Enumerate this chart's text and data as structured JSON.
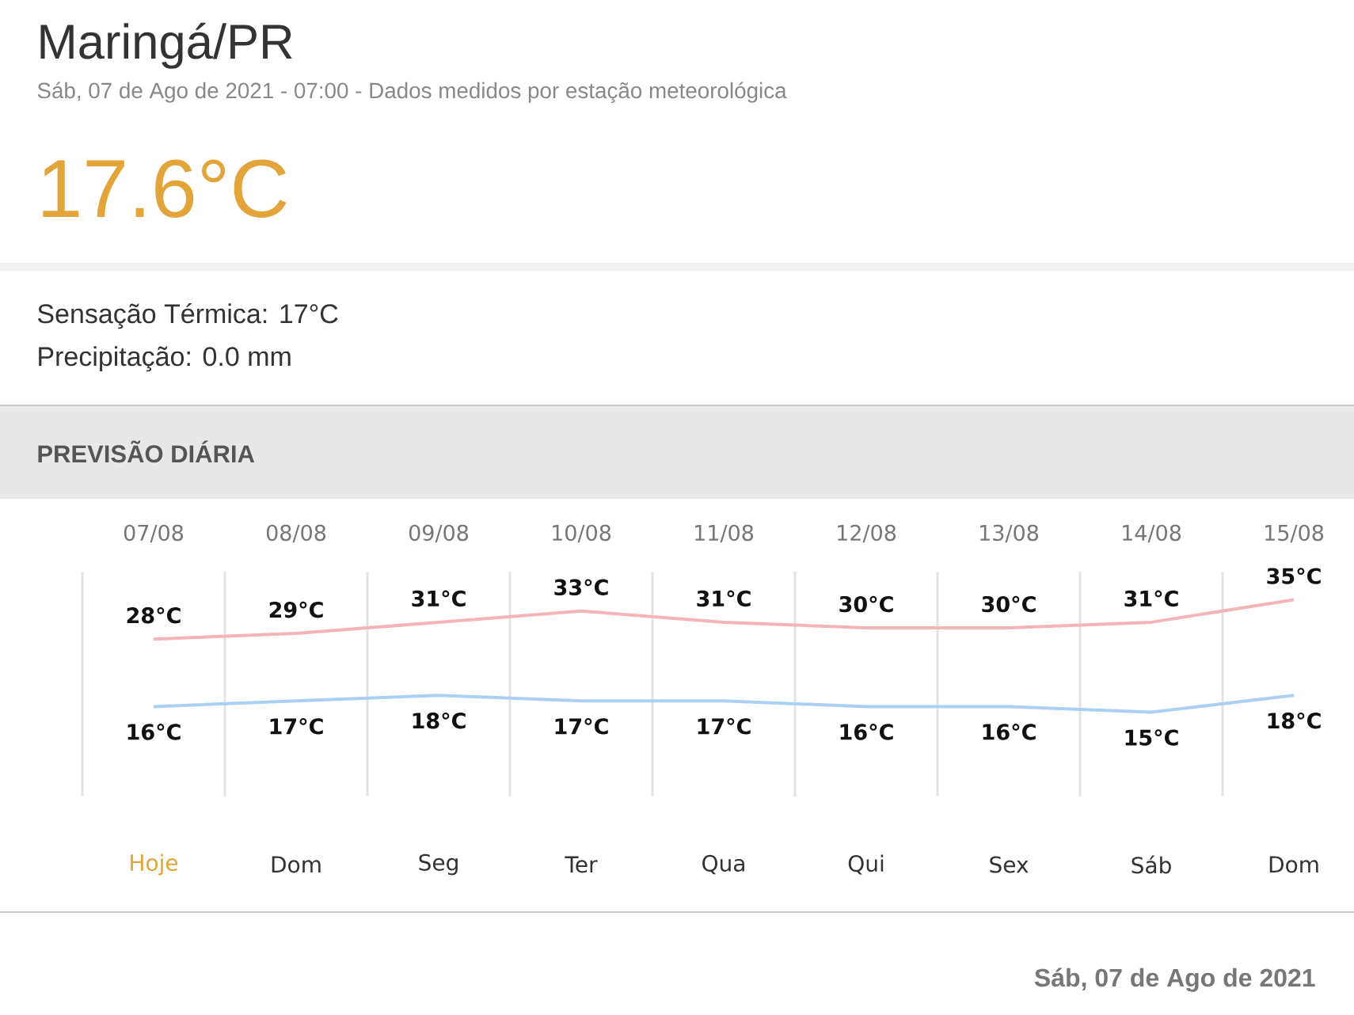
{
  "chart_data": {
    "type": "line",
    "title": "Maringá/PR",
    "subtitle": "Sáb, 07 de Ago de 2021 - 07:00 - Dados medidos por estação meteorológica",
    "categories": [
      "07/08",
      "08/08",
      "09/08",
      "10/08",
      "11/08",
      "12/08",
      "13/08",
      "14/08",
      "15/08"
    ],
    "series": [
      {
        "color": "#f4b5ba",
        "values": [
          28,
          29,
          31,
          33,
          31,
          30,
          30,
          31,
          35
        ],
        "value_labels": [
          "28°C",
          "29°C",
          "31°C",
          "33°C",
          "31°C",
          "30°C",
          "30°C",
          "31°C",
          "35°C"
        ]
      },
      {
        "color": "#acd0f1",
        "values": [
          16,
          17,
          18,
          17,
          17,
          16,
          16,
          15,
          18
        ],
        "value_labels": [
          "16°C",
          "17°C",
          "18°C",
          "17°C",
          "17°C",
          "16°C",
          "16°C",
          "15°C",
          "18°C"
        ]
      }
    ],
    "ylim": [
      0,
      40
    ],
    "tick_labels": "x",
    "grid": "x",
    "annotations": [
      "17.6°C",
      "Sensação Térmica: 17°C",
      "Precipitação: 0.0 mm",
      "PREVISÃO DIÁRIA",
      "Hoje",
      "Dom",
      "Seg",
      "Ter",
      "Qua",
      "Qui",
      "Sex",
      "Sáb",
      "Dom",
      "Sáb, 07 de Ago de 2021"
    ]
  }
}
